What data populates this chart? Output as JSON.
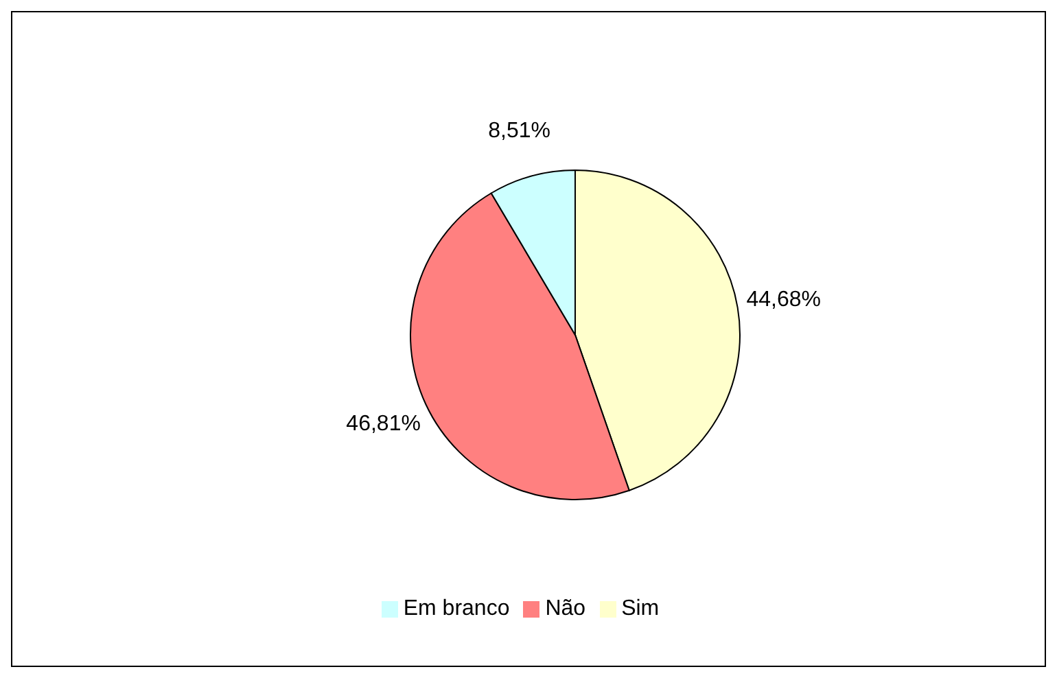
{
  "chart_data": {
    "type": "pie",
    "categories": [
      "Sim",
      "Não",
      "Em branco"
    ],
    "values": [
      44.68,
      46.81,
      8.51
    ],
    "colors": [
      "#ffffcc",
      "#ff8080",
      "#ccffff"
    ],
    "value_labels": [
      "44,68%",
      "46,81%",
      "8,51%"
    ],
    "legend": "bottom"
  }
}
